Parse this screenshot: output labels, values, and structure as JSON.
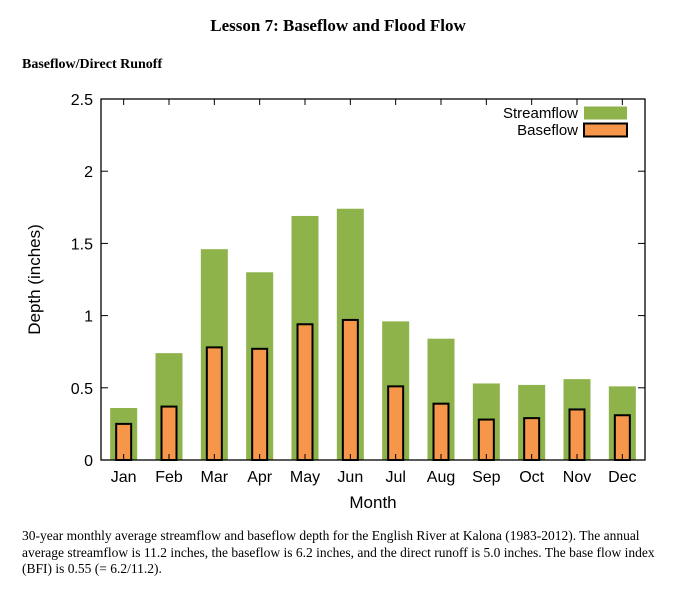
{
  "page": {
    "title": "Lesson 7: Baseflow and Flood Flow",
    "section_title": "Baseflow/Direct Runoff",
    "caption": "30-year monthly average streamflow and baseflow depth for the English River at Kalona (1983-2012). The annual average streamflow is 11.2 inches, the baseflow is 6.2 inches, and the direct runoff is 5.0 inches. The base flow index (BFI) is 0.55 (= 6.2/11.2)."
  },
  "chart_data": {
    "type": "bar",
    "title": "",
    "xlabel": "Month",
    "ylabel": "Depth (inches)",
    "ylim": [
      0,
      2.5
    ],
    "yticks": [
      "0",
      "0.5",
      "1",
      "1.5",
      "2",
      "2.5"
    ],
    "categories": [
      "Jan",
      "Feb",
      "Mar",
      "Apr",
      "May",
      "Jun",
      "Jul",
      "Aug",
      "Sep",
      "Oct",
      "Nov",
      "Dec"
    ],
    "series": [
      {
        "name": "Streamflow",
        "color": "#8db34a",
        "values": [
          0.36,
          0.74,
          1.46,
          1.3,
          1.69,
          1.74,
          0.96,
          0.84,
          0.53,
          0.52,
          0.56,
          0.51
        ]
      },
      {
        "name": "Baseflow",
        "color": "#f5964b",
        "values": [
          0.25,
          0.37,
          0.78,
          0.77,
          0.94,
          0.97,
          0.51,
          0.39,
          0.28,
          0.29,
          0.35,
          0.31
        ]
      }
    ],
    "legend": {
      "position": "top-right"
    },
    "grid": false
  }
}
